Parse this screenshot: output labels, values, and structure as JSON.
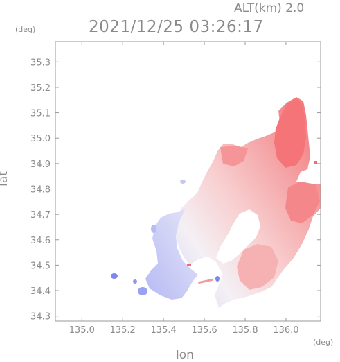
{
  "header": {
    "altitude_label": "ALT(km) 2.0",
    "timestamp": "2021/12/25 03:26:17"
  },
  "axes": {
    "x_unit": "(deg)",
    "y_unit": "(deg)",
    "x_label": "lon",
    "y_label": "lat",
    "x_range": [
      134.87,
      136.17
    ],
    "y_range": [
      34.28,
      35.38
    ],
    "x_ticks": [
      "135.0",
      "135.2",
      "135.4",
      "135.6",
      "135.8",
      "136.0"
    ],
    "y_ticks": [
      "34.3",
      "34.4",
      "34.5",
      "34.6",
      "34.7",
      "34.8",
      "34.9",
      "35.0",
      "35.1",
      "35.2",
      "35.3"
    ]
  },
  "colors": {
    "approaching": "#7f86f0",
    "receding": "#f26b6e",
    "frame": "#9a9a9a"
  }
}
